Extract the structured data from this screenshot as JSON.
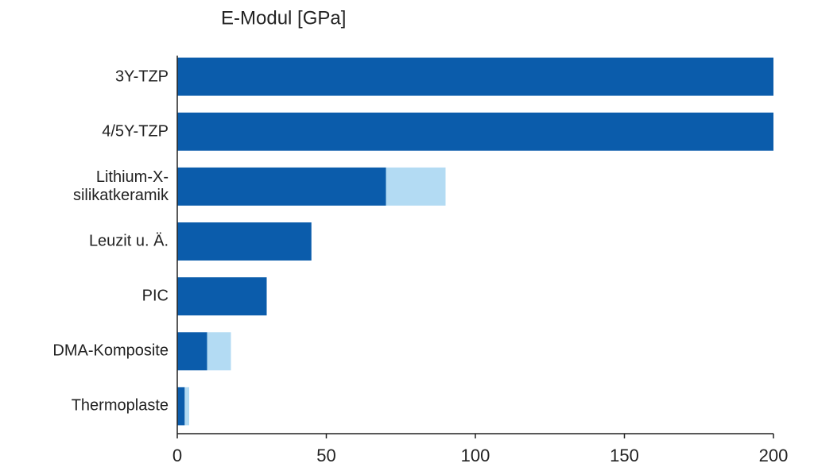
{
  "chart_data": {
    "type": "bar",
    "orientation": "horizontal",
    "stacked": true,
    "title": "E-Modul [GPa]",
    "categories": [
      "3Y-TZP",
      "4/5Y-TZP",
      "Lithium-X-\nsilikatkeramik",
      "Leuzit u. Ä.",
      "PIC",
      "DMA-Komposite",
      "Thermoplaste"
    ],
    "series": [
      {
        "color": "#0b5cab",
        "values": [
          200,
          200,
          70,
          45,
          30,
          10,
          2.5
        ]
      },
      {
        "color": "#b3dbf3",
        "values": [
          0,
          0,
          20,
          0,
          0,
          8,
          1.5
        ]
      }
    ],
    "xlim": [
      0,
      200
    ],
    "xticks": [
      0,
      50,
      100,
      150,
      200
    ]
  }
}
